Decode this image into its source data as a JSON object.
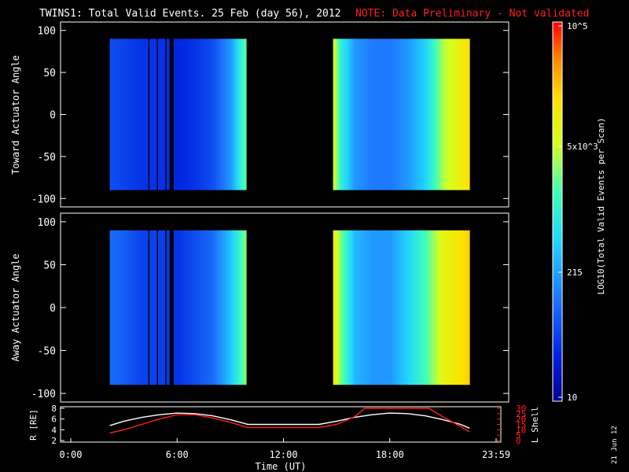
{
  "header": {
    "title": "TWINS1: Total Valid Events. 25 Feb (day  56), 2012",
    "note": "NOTE: Data Preliminary - Not validated",
    "note_color": "#ff2020"
  },
  "footer": {
    "stamp": "21 Jun 12"
  },
  "colorbar": {
    "label": "LOG10(Total Valid Events per Scan)",
    "ticks": [
      "10",
      "215",
      "5x10^3",
      "10^5"
    ],
    "range": [
      10,
      100000
    ],
    "scale": "log"
  },
  "chart_data": [
    {
      "type": "heatmap",
      "title": "TWINS1: Total Valid Events. 25 Feb (day  56), 2012",
      "ylabel": "Toward Actuator Angle",
      "ylim": [
        -110,
        110
      ],
      "yticks": [
        "100",
        "50",
        "0",
        "-50",
        "-100"
      ],
      "xlim_hours": [
        0,
        24
      ],
      "data_intervals_hours": [
        [
          2.2,
          9.9
        ],
        [
          14.8,
          22.5
        ]
      ],
      "gaps_hours": [
        [
          4.3,
          4.42
        ],
        [
          4.8,
          4.92
        ],
        [
          5.25,
          5.38
        ],
        [
          5.55,
          5.78
        ]
      ],
      "columns": {
        "hours": [
          2.2,
          3.0,
          4.0,
          5.0,
          6.0,
          7.0,
          8.0,
          9.0,
          9.9,
          14.8,
          15.2,
          16.0,
          17.0,
          18.0,
          19.0,
          20.0,
          21.0,
          22.5
        ],
        "log_counts": [
          1.8,
          1.7,
          1.6,
          1.6,
          1.5,
          1.6,
          1.8,
          2.3,
          3.4,
          3.8,
          3.0,
          2.3,
          2.1,
          2.1,
          2.3,
          2.7,
          3.6,
          4.2
        ]
      }
    },
    {
      "type": "heatmap",
      "ylabel": "Away Actuator Angle",
      "ylim": [
        -110,
        110
      ],
      "yticks": [
        "100",
        "50",
        "0",
        "-50",
        "-100"
      ],
      "xlim_hours": [
        0,
        24
      ],
      "data_intervals_hours": [
        [
          2.2,
          9.9
        ],
        [
          14.8,
          22.5
        ]
      ],
      "gaps_hours": [
        [
          4.3,
          4.42
        ],
        [
          4.8,
          4.92
        ],
        [
          5.25,
          5.38
        ],
        [
          5.55,
          5.78
        ]
      ],
      "columns": {
        "hours": [
          2.2,
          3.0,
          4.0,
          5.0,
          6.0,
          7.0,
          8.0,
          9.0,
          9.9,
          14.8,
          15.2,
          16.0,
          17.0,
          18.0,
          19.0,
          20.0,
          21.0,
          22.5
        ],
        "log_counts": [
          2.0,
          1.9,
          1.7,
          1.7,
          1.6,
          1.8,
          2.0,
          2.6,
          3.5,
          4.0,
          3.4,
          2.5,
          2.3,
          2.3,
          2.7,
          3.2,
          3.9,
          4.3
        ]
      }
    },
    {
      "type": "line",
      "xlabel": "Time (UT)",
      "xticks": [
        "0:00",
        "6:00",
        "12:00",
        "18:00",
        "23:59"
      ],
      "xlim_hours": [
        0,
        24
      ],
      "ylabel_left": "R [RE]",
      "ylim_left": [
        2,
        8
      ],
      "yticks_left": [
        "2",
        "4",
        "6",
        "8"
      ],
      "ylabel_right": "L Shell",
      "ylim_right": [
        0,
        30
      ],
      "yticks_right": [
        "0",
        "5",
        "10",
        "15",
        "20",
        "25",
        "30"
      ],
      "series": [
        {
          "axis": "left",
          "color": "#ffffff",
          "x": [
            2.2,
            3.0,
            4.0,
            5.0,
            6.0,
            7.0,
            8.0,
            9.0,
            10.0,
            11.0,
            12.0,
            13.0,
            14.0,
            15.0,
            16.0,
            17.0,
            18.0,
            19.0,
            20.0,
            21.0,
            22.0,
            22.5
          ],
          "y": [
            4.8,
            5.6,
            6.3,
            6.8,
            7.1,
            7.0,
            6.6,
            5.9,
            5.0,
            5.0,
            5.0,
            5.0,
            5.0,
            5.6,
            6.3,
            6.8,
            7.1,
            7.0,
            6.6,
            5.9,
            5.0,
            4.3
          ]
        },
        {
          "axis": "right",
          "color": "#ff2020",
          "x": [
            2.2,
            3.0,
            4.0,
            5.0,
            6.0,
            7.0,
            8.0,
            9.0,
            10.0,
            11.0,
            12.0,
            13.0,
            14.0,
            15.0,
            16.0,
            16.6,
            20.2,
            21.0,
            22.0,
            22.5
          ],
          "y": [
            7,
            10,
            15,
            20,
            24,
            24,
            21,
            17,
            12,
            12,
            12,
            12,
            12,
            15,
            22,
            30,
            30,
            22,
            13,
            8
          ]
        }
      ]
    }
  ]
}
